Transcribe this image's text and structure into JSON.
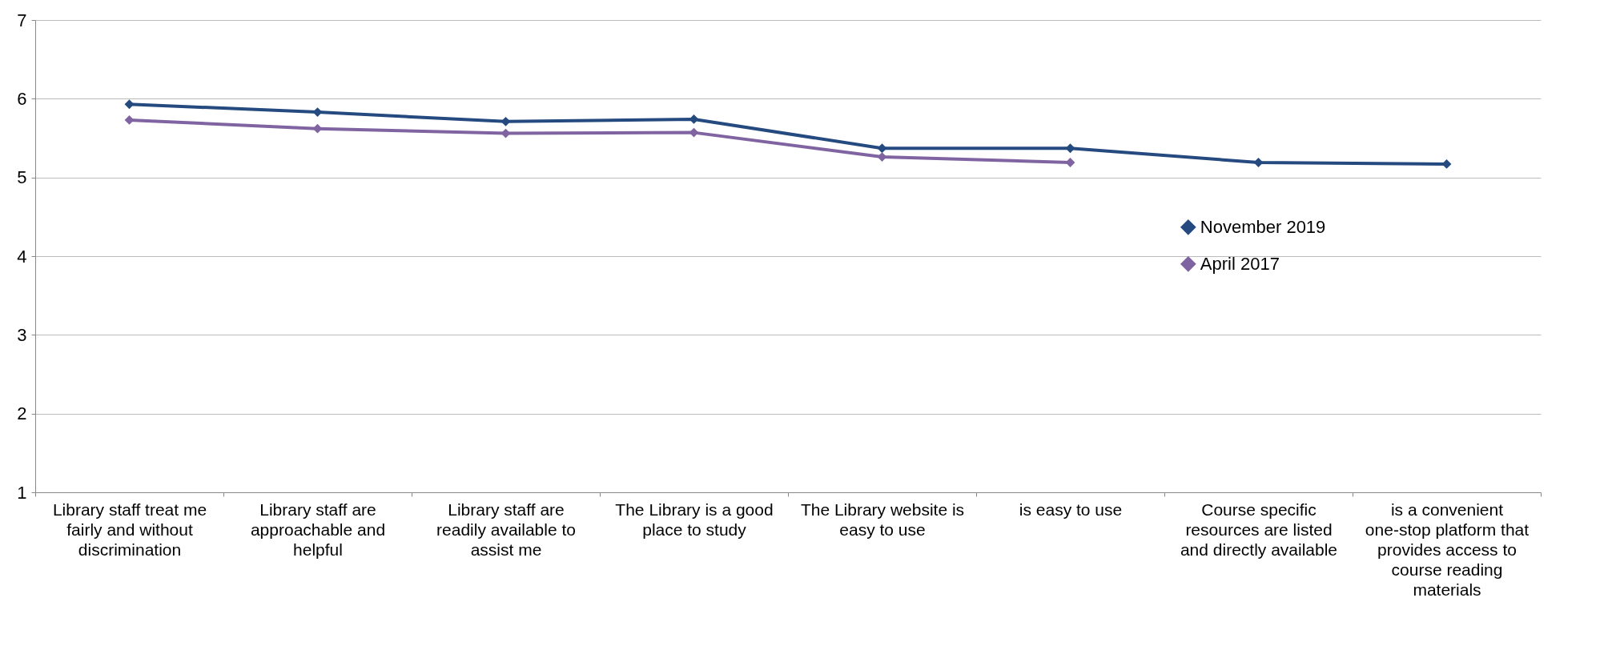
{
  "chart_data": {
    "type": "line",
    "categories": [
      "Library staff treat me fairly and without discrimination",
      "Library staff are approachable and helpful",
      "Library staff are readily available to assist me",
      "The Library is a good place to study",
      "The Library website is easy to use",
      "is easy to use",
      "Course specific resources are listed and directly available",
      "is a convenient one-stop platform that provides access to course reading materials"
    ],
    "series": [
      {
        "name": "November 2019",
        "color": "#254a7f",
        "values": [
          5.93,
          5.83,
          5.71,
          5.74,
          5.37,
          5.37,
          5.19,
          5.17
        ]
      },
      {
        "name": "April 2017",
        "color": "#8064a2",
        "values": [
          5.73,
          5.62,
          5.56,
          5.57,
          5.26,
          5.19,
          null,
          null
        ]
      }
    ],
    "ylim": [
      1,
      7
    ],
    "yticks": [
      1,
      2,
      3,
      4,
      5,
      6,
      7
    ],
    "grid": "y",
    "legend": "right",
    "marker": "diamond",
    "line_style": "solid"
  }
}
